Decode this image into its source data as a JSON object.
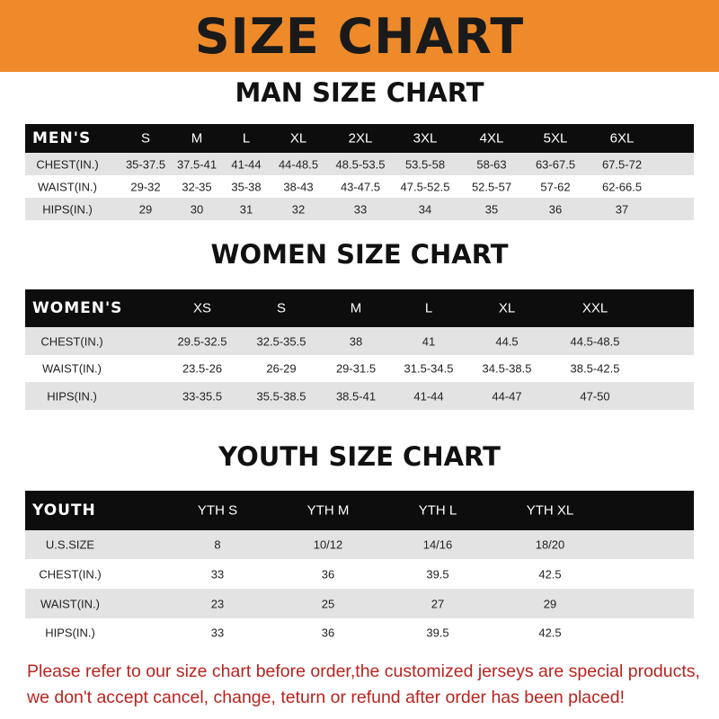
{
  "banner_title": "SIZE CHART",
  "men": {
    "title": "MAN SIZE CHART",
    "header": [
      "MEN'S",
      "S",
      "M",
      "L",
      "XL",
      "2XL",
      "3XL",
      "4XL",
      "5XL",
      "6XL"
    ],
    "rows": [
      [
        "CHEST(IN.)",
        "35-37.5",
        "37.5-41",
        "41-44",
        "44-48.5",
        "48.5-53.5",
        "53.5-58",
        "58-63",
        "63-67.5",
        "67.5-72"
      ],
      [
        "WAIST(IN.)",
        "29-32",
        "32-35",
        "35-38",
        "38-43",
        "43-47.5",
        "47.5-52.5",
        "52.5-57",
        "57-62",
        "62-66.5"
      ],
      [
        "HIPS(IN.)",
        "29",
        "30",
        "31",
        "32",
        "33",
        "34",
        "35",
        "36",
        "37"
      ]
    ]
  },
  "women": {
    "title": "WOMEN SIZE CHART",
    "header": [
      "WOMEN'S",
      "XS",
      "S",
      "M",
      "L",
      "XL",
      "XXL"
    ],
    "rows": [
      [
        "CHEST(IN.)",
        "29.5-32.5",
        "32.5-35.5",
        "38",
        "41",
        "44.5",
        "44.5-48.5"
      ],
      [
        "WAIST(IN.)",
        "23.5-26",
        "26-29",
        "29-31.5",
        "31.5-34.5",
        "34.5-38.5",
        "38.5-42.5"
      ],
      [
        "HIPS(IN.)",
        "33-35.5",
        "35.5-38.5",
        "38.5-41",
        "41-44",
        "44-47",
        "47-50"
      ]
    ]
  },
  "youth": {
    "title": "YOUTH SIZE CHART",
    "header": [
      "YOUTH",
      "YTH S",
      "YTH M",
      "YTH L",
      "YTH XL"
    ],
    "rows": [
      [
        "U.S.SIZE",
        "8",
        "10/12",
        "14/16",
        "18/20"
      ],
      [
        "CHEST(IN.)",
        "33",
        "36",
        "39.5",
        "42.5"
      ],
      [
        "WAIST(IN.)",
        "23",
        "25",
        "27",
        "29"
      ],
      [
        "HIPS(IN.)",
        "33",
        "36",
        "39.5",
        "42.5"
      ]
    ]
  },
  "footer": {
    "line1": "Please refer to our size chart before order,the customized jerseys are special products,",
    "line2": "we don't accept cancel, change, teturn or refund after order has been placed!"
  },
  "colors": {
    "banner": "#ee8a2a",
    "header_row": "#0d0d0d",
    "shaded_row": "#e3e3e3",
    "notice_text": "#b8241f"
  }
}
